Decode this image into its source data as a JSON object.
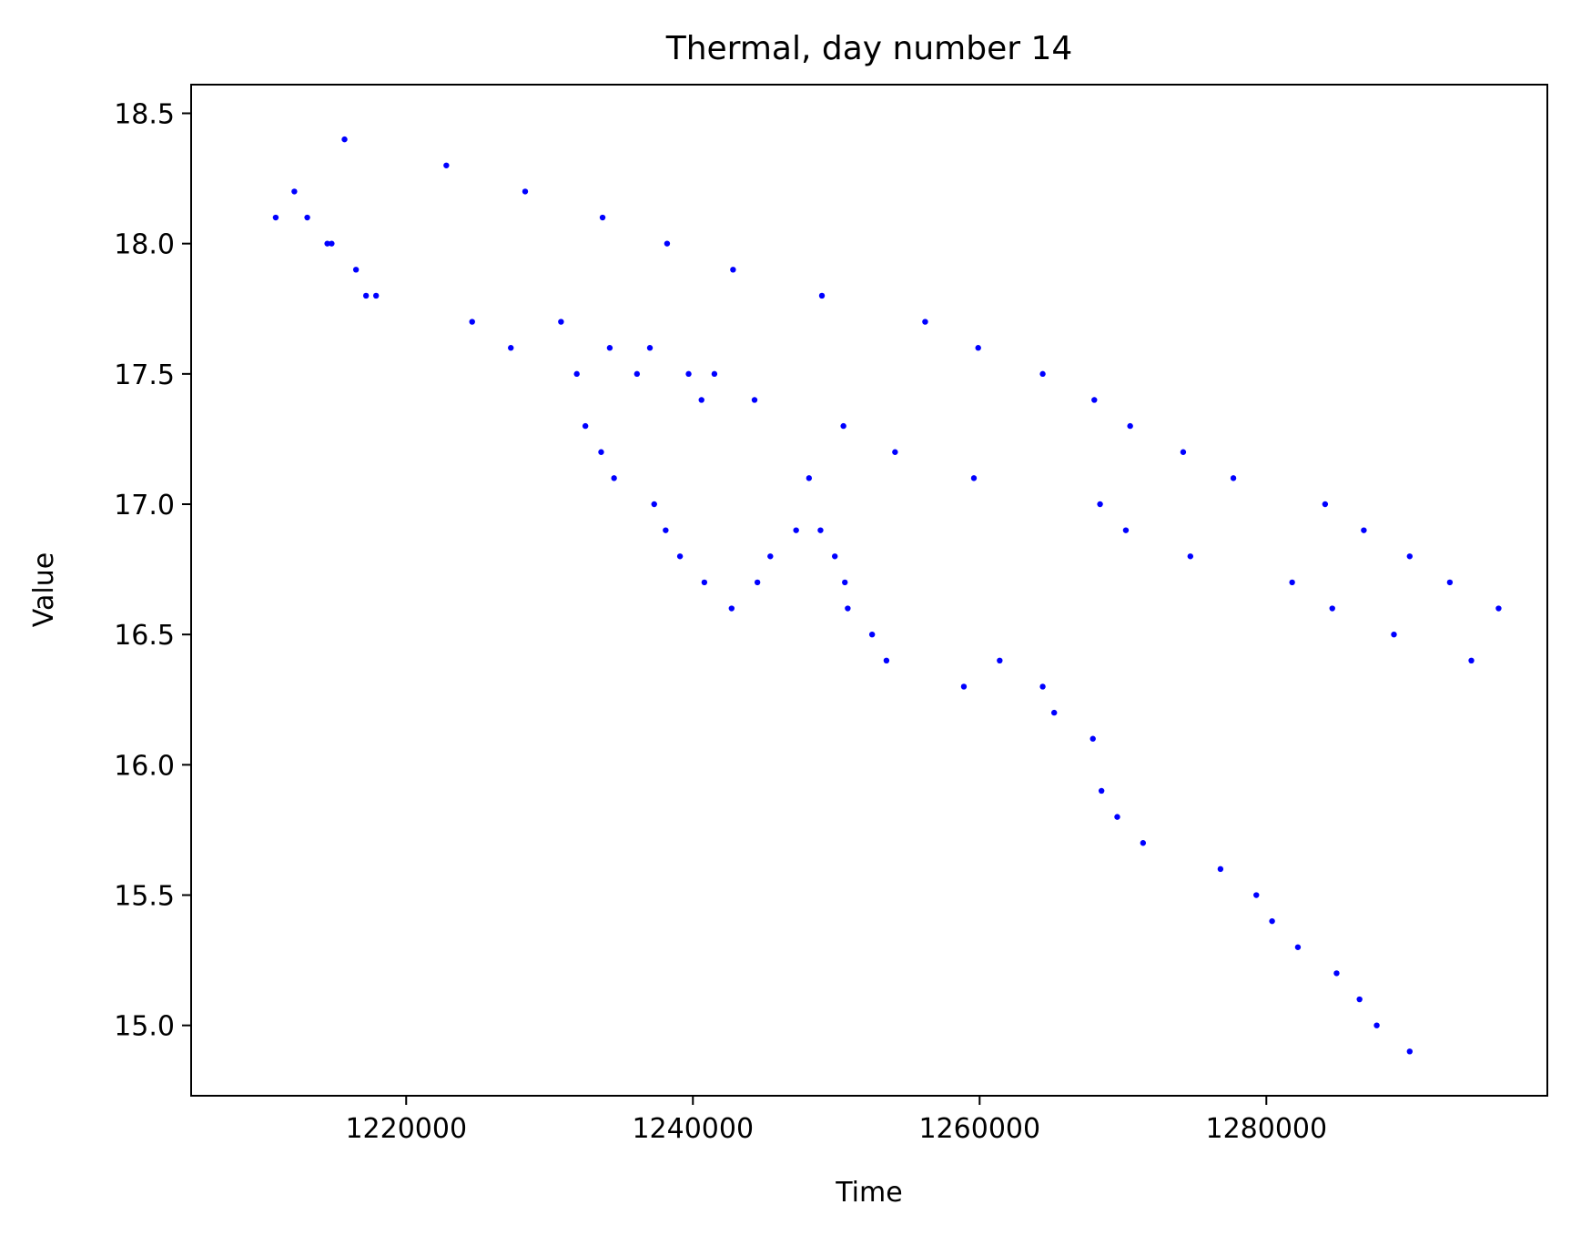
{
  "chart_data": {
    "type": "scatter",
    "title": "Thermal, day number 14",
    "xlabel": "Time",
    "ylabel": "Value",
    "xlim": [
      1205000,
      1299600
    ],
    "ylim": [
      14.73,
      18.61
    ],
    "xticks": [
      1220000,
      1240000,
      1260000,
      1280000
    ],
    "xtick_labels": [
      "1220000",
      "1240000",
      "1260000",
      "1280000"
    ],
    "yticks": [
      15.0,
      15.5,
      16.0,
      16.5,
      17.0,
      17.5,
      18.0,
      18.5
    ],
    "ytick_labels": [
      "15.0",
      "15.5",
      "16.0",
      "16.5",
      "17.0",
      "17.5",
      "18.0",
      "18.5"
    ],
    "grid": false,
    "marker_color": "#0000ff",
    "series": [
      {
        "points": [
          {
            "x": 1210900,
            "y": 18.1
          },
          {
            "x": 1212200,
            "y": 18.2
          },
          {
            "x": 1213100,
            "y": 18.1
          },
          {
            "x": 1214500,
            "y": 18.0
          },
          {
            "x": 1214800,
            "y": 18.0
          },
          {
            "x": 1215700,
            "y": 18.4
          },
          {
            "x": 1216500,
            "y": 17.9
          },
          {
            "x": 1217200,
            "y": 17.8
          },
          {
            "x": 1217900,
            "y": 17.8
          },
          {
            "x": 1222800,
            "y": 18.3
          },
          {
            "x": 1224600,
            "y": 17.7
          },
          {
            "x": 1227300,
            "y": 17.6
          },
          {
            "x": 1228300,
            "y": 18.2
          },
          {
            "x": 1230800,
            "y": 17.7
          },
          {
            "x": 1231900,
            "y": 17.5
          },
          {
            "x": 1232500,
            "y": 17.3
          },
          {
            "x": 1233600,
            "y": 17.2
          },
          {
            "x": 1233700,
            "y": 18.1
          },
          {
            "x": 1234200,
            "y": 17.6
          },
          {
            "x": 1234500,
            "y": 17.1
          },
          {
            "x": 1236100,
            "y": 17.5
          },
          {
            "x": 1237000,
            "y": 17.6
          },
          {
            "x": 1237300,
            "y": 17.0
          },
          {
            "x": 1238100,
            "y": 16.9
          },
          {
            "x": 1238200,
            "y": 18.0
          },
          {
            "x": 1239100,
            "y": 16.8
          },
          {
            "x": 1239700,
            "y": 17.5
          },
          {
            "x": 1240600,
            "y": 17.4
          },
          {
            "x": 1240800,
            "y": 16.7
          },
          {
            "x": 1241500,
            "y": 17.5
          },
          {
            "x": 1242700,
            "y": 16.6
          },
          {
            "x": 1242800,
            "y": 17.9
          },
          {
            "x": 1244300,
            "y": 17.4
          },
          {
            "x": 1244500,
            "y": 16.7
          },
          {
            "x": 1245400,
            "y": 16.8
          },
          {
            "x": 1247200,
            "y": 16.9
          },
          {
            "x": 1248100,
            "y": 17.1
          },
          {
            "x": 1248900,
            "y": 16.9
          },
          {
            "x": 1249000,
            "y": 17.8
          },
          {
            "x": 1249900,
            "y": 16.8
          },
          {
            "x": 1250500,
            "y": 17.3
          },
          {
            "x": 1250600,
            "y": 16.7
          },
          {
            "x": 1250800,
            "y": 16.6
          },
          {
            "x": 1252500,
            "y": 16.5
          },
          {
            "x": 1253500,
            "y": 16.4
          },
          {
            "x": 1254100,
            "y": 17.2
          },
          {
            "x": 1256200,
            "y": 17.7
          },
          {
            "x": 1258900,
            "y": 16.3
          },
          {
            "x": 1259600,
            "y": 17.1
          },
          {
            "x": 1259900,
            "y": 17.6
          },
          {
            "x": 1261400,
            "y": 16.4
          },
          {
            "x": 1264400,
            "y": 16.3
          },
          {
            "x": 1264400,
            "y": 17.5
          },
          {
            "x": 1265200,
            "y": 16.2
          },
          {
            "x": 1267900,
            "y": 16.1
          },
          {
            "x": 1268000,
            "y": 17.4
          },
          {
            "x": 1268400,
            "y": 17.0
          },
          {
            "x": 1268500,
            "y": 15.9
          },
          {
            "x": 1269600,
            "y": 15.8
          },
          {
            "x": 1270200,
            "y": 16.9
          },
          {
            "x": 1270500,
            "y": 17.3
          },
          {
            "x": 1271400,
            "y": 15.7
          },
          {
            "x": 1274200,
            "y": 17.2
          },
          {
            "x": 1274700,
            "y": 16.8
          },
          {
            "x": 1276800,
            "y": 15.6
          },
          {
            "x": 1277700,
            "y": 17.1
          },
          {
            "x": 1279300,
            "y": 15.5
          },
          {
            "x": 1280400,
            "y": 15.4
          },
          {
            "x": 1281800,
            "y": 16.7
          },
          {
            "x": 1282200,
            "y": 15.3
          },
          {
            "x": 1284100,
            "y": 17.0
          },
          {
            "x": 1284600,
            "y": 16.6
          },
          {
            "x": 1284900,
            "y": 15.2
          },
          {
            "x": 1286500,
            "y": 15.1
          },
          {
            "x": 1286800,
            "y": 16.9
          },
          {
            "x": 1287700,
            "y": 15.0
          },
          {
            "x": 1288900,
            "y": 16.5
          },
          {
            "x": 1290000,
            "y": 16.8
          },
          {
            "x": 1290000,
            "y": 14.9
          },
          {
            "x": 1292800,
            "y": 16.7
          },
          {
            "x": 1294300,
            "y": 16.4
          },
          {
            "x": 1296200,
            "y": 16.6
          }
        ]
      }
    ]
  }
}
